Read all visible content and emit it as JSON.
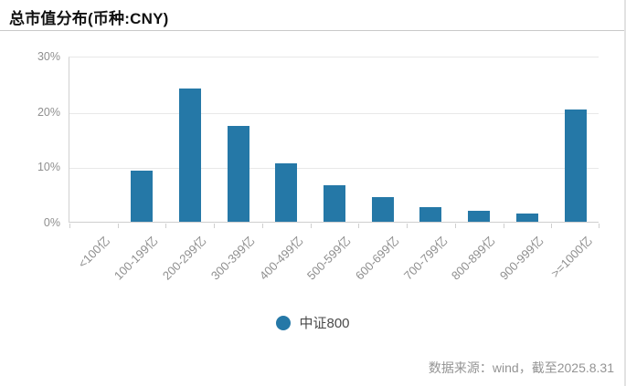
{
  "title": "总市值分布(币种:CNY)",
  "legend": {
    "label": "中证800"
  },
  "footer": "数据来源：wind，截至2025.8.31",
  "colors": {
    "bar": "#2578a7",
    "grid": "#e8e8e8",
    "axis_label": "#8f8f8f"
  },
  "chart_data": {
    "type": "bar",
    "title": "总市值分布(币种:CNY)",
    "categories": [
      "<100亿",
      "100-199亿",
      "200-299亿",
      "300-399亿",
      "400-499亿",
      "500-599亿",
      "600-699亿",
      "700-799亿",
      "800-899亿",
      "900-999亿",
      ">=1000亿"
    ],
    "series": [
      {
        "name": "中证800",
        "values": [
          0,
          9.2,
          24,
          17.3,
          10.5,
          6.6,
          4.4,
          2.7,
          1.9,
          1.5,
          20.3
        ]
      }
    ],
    "xlabel": "",
    "ylabel": "",
    "ylim": [
      0,
      30
    ],
    "yticks": [
      "0%",
      "10%",
      "20%",
      "30%"
    ],
    "grid": true,
    "legend_position": "bottom",
    "x_label_rotation": 45
  }
}
